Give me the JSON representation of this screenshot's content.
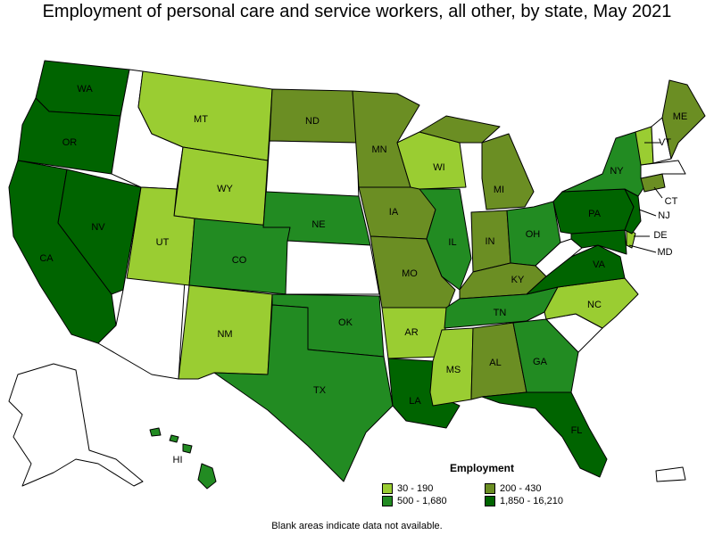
{
  "title": "Employment of personal care and service workers, all other, by state, May 2021",
  "legend": {
    "title": "Employment",
    "items": [
      {
        "range": "30 - 190",
        "color": "#9acd32"
      },
      {
        "range": "200 - 430",
        "color": "#6b8e23"
      },
      {
        "range": "500 - 1,680",
        "color": "#228b22"
      },
      {
        "range": "1,850 - 16,210",
        "color": "#006400"
      }
    ]
  },
  "footnote": "Blank areas indicate data not available.",
  "states": {
    "WA": "1,850 - 16,210",
    "OR": "1,850 - 16,210",
    "CA": "1,850 - 16,210",
    "NV": "1,850 - 16,210",
    "MT": "30 - 190",
    "WY": "30 - 190",
    "UT": "30 - 190",
    "NM": "30 - 190",
    "CO": "500 - 1,680",
    "ND": "200 - 430",
    "NE": "500 - 1,680",
    "OK": "500 - 1,680",
    "TX": "500 - 1,680",
    "MN": "200 - 430",
    "IA": "200 - 430",
    "MO": "200 - 430",
    "AR": "30 - 190",
    "LA": "1,850 - 16,210",
    "WI": "30 - 190",
    "IL": "500 - 1,680",
    "MI": "200 - 430",
    "IN": "200 - 430",
    "OH": "500 - 1,680",
    "KY": "200 - 430",
    "TN": "500 - 1,680",
    "MS": "30 - 190",
    "AL": "200 - 430",
    "GA": "500 - 1,680",
    "FL": "1,850 - 16,210",
    "VA": "1,850 - 16,210",
    "NC": "30 - 190",
    "PA": "1,850 - 16,210",
    "NY": "500 - 1,680",
    "ME": "200 - 430",
    "VT": "30 - 190",
    "CT": "200 - 430",
    "NJ": "1,850 - 16,210",
    "DE": "30 - 190",
    "MD": "1,850 - 16,210",
    "HI": "500 - 1,680"
  },
  "labels": [
    "WA",
    "OR",
    "CA",
    "NV",
    "MT",
    "WY",
    "UT",
    "CO",
    "NM",
    "ND",
    "NE",
    "OK",
    "TX",
    "MN",
    "IA",
    "MO",
    "AR",
    "LA",
    "WI",
    "IL",
    "MI",
    "IN",
    "OH",
    "KY",
    "TN",
    "MS",
    "AL",
    "GA",
    "FL",
    "VA",
    "NC",
    "PA",
    "NY",
    "ME",
    "VT",
    "CT",
    "NJ",
    "DE",
    "MD",
    "HI"
  ]
}
